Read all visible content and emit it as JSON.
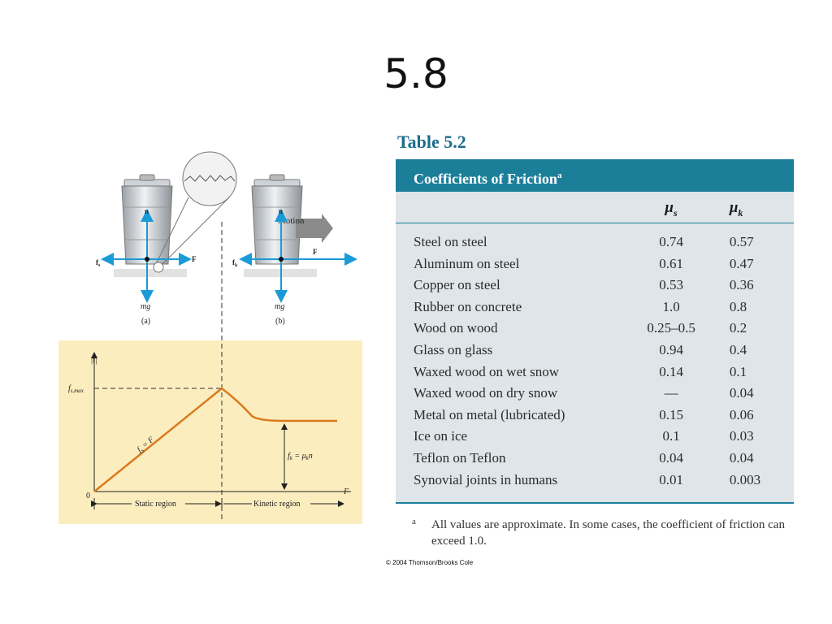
{
  "slide": {
    "title": "5.8"
  },
  "figure": {
    "labels": {
      "n": "n",
      "motion": "Motion",
      "F": "F",
      "fs": "f",
      "fs_sub": "s",
      "fk": "f",
      "fk_sub": "k",
      "mg_a": "mg",
      "mg_b": "mg",
      "caption_a": "(a)",
      "caption_b": "(b)",
      "f_axis": "|f|",
      "fs_max": "f",
      "fs_max_sub": "s,max",
      "origin": "0",
      "x_axis": "F",
      "static_line": "f",
      "static_line_rest": " = F",
      "kinetic_eq": "f",
      "kinetic_eq_rest": " = μ",
      "kinetic_eq_end": "n",
      "static_region": "Static region",
      "kinetic_region": "Kinetic region"
    },
    "colors": {
      "panel_bg": "#fcedbf",
      "curve": "#d97a1e",
      "arrow": "#1a9ad6"
    }
  },
  "table": {
    "caption": "Table 5.2",
    "header": "Coefficients of Friction",
    "header_mark": "a",
    "col_mu_s": "μ",
    "col_mu_s_sub": "s",
    "col_mu_k": "μ",
    "col_mu_k_sub": "k",
    "rows": [
      {
        "material": "Steel on steel",
        "mu_s": "0.74",
        "mu_k": "0.57"
      },
      {
        "material": "Aluminum on steel",
        "mu_s": "0.61",
        "mu_k": "0.47"
      },
      {
        "material": "Copper on steel",
        "mu_s": "0.53",
        "mu_k": "0.36"
      },
      {
        "material": "Rubber on concrete",
        "mu_s": "1.0",
        "mu_k": "0.8"
      },
      {
        "material": "Wood on wood",
        "mu_s": "0.25–0.5",
        "mu_k": "0.2"
      },
      {
        "material": "Glass on glass",
        "mu_s": "0.94",
        "mu_k": "0.4"
      },
      {
        "material": "Waxed wood on wet snow",
        "mu_s": "0.14",
        "mu_k": "0.1"
      },
      {
        "material": "Waxed wood on dry snow",
        "mu_s": "—",
        "mu_k": "0.04"
      },
      {
        "material": "Metal on metal (lubricated)",
        "mu_s": "0.15",
        "mu_k": "0.06"
      },
      {
        "material": "Ice on ice",
        "mu_s": "0.1",
        "mu_k": "0.03"
      },
      {
        "material": "Teflon on Teflon",
        "mu_s": "0.04",
        "mu_k": "0.04"
      },
      {
        "material": "Synovial joints in humans",
        "mu_s": "0.01",
        "mu_k": "0.003"
      }
    ],
    "footnote_mark": "a",
    "footnote": "All values are approximate. In some cases, the coefficient of friction can exceed 1.0.",
    "colors": {
      "title": "#1e6d8d",
      "header_bg": "#1b7f9a",
      "body_bg": "#dfe5e8"
    }
  },
  "copyright": "© 2004 Thomson/Brooks Cole"
}
